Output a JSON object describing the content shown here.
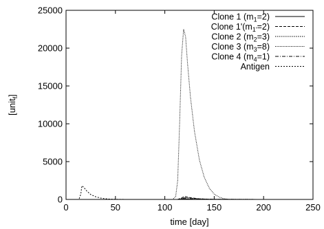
{
  "chart_data": {
    "type": "line",
    "title": "",
    "xlabel": "time [day]",
    "ylabel_main": "[unit",
    "ylabel_sub": "f",
    "ylabel_close": "]",
    "xlim": [
      0,
      250
    ],
    "ylim": [
      0,
      25000
    ],
    "xticks": [
      0,
      50,
      100,
      150,
      200,
      250
    ],
    "yticks": [
      0,
      5000,
      10000,
      15000,
      20000,
      25000
    ],
    "grid": false,
    "legend_position": "top-right",
    "series": [
      {
        "name": "Clone 1 (m",
        "name_sub": "1",
        "name_tail": "=2)",
        "dash": "solid",
        "x": [
          0,
          20,
          100,
          115,
          119,
          125,
          140,
          210
        ],
        "y": [
          0,
          0,
          0,
          0,
          80,
          40,
          5,
          0
        ]
      },
      {
        "name": "Clone 1'(m",
        "name_sub": "1'",
        "name_tail": "=2)",
        "dash": "dashed",
        "x": [
          0,
          100,
          113,
          117,
          120,
          125,
          135,
          150,
          210
        ],
        "y": [
          0,
          0,
          0,
          200,
          400,
          250,
          80,
          10,
          0
        ]
      },
      {
        "name": "Clone 2 (m",
        "name_sub": "2",
        "name_tail": "=3)",
        "dash": "dotted",
        "x": [
          0,
          100,
          114,
          118,
          122,
          130,
          145,
          210
        ],
        "y": [
          0,
          0,
          0,
          150,
          250,
          120,
          20,
          0
        ]
      },
      {
        "name": "Clone 3 (m",
        "name_sub": "3",
        "name_tail": "=8)",
        "dash": "fine-dotted",
        "x": [
          0,
          100,
          108,
          111,
          113,
          115,
          117,
          119,
          121,
          123,
          126,
          130,
          135,
          140,
          145,
          150,
          155,
          160,
          165
        ],
        "y": [
          0,
          0,
          0,
          400,
          2500,
          10000,
          19000,
          22500,
          21500,
          18000,
          13500,
          9000,
          5200,
          2900,
          1500,
          700,
          300,
          100,
          0
        ]
      },
      {
        "name": "Clone 4 (m",
        "name_sub": "4",
        "name_tail": "=1)",
        "dash": "dash-dot",
        "x": [
          0,
          100,
          113,
          117,
          120,
          126,
          140,
          210
        ],
        "y": [
          0,
          0,
          0,
          120,
          200,
          90,
          15,
          0
        ]
      },
      {
        "name": "Antigen",
        "name_sub": "",
        "name_tail": "",
        "dash": "short-dashed",
        "x": [
          0,
          13,
          15,
          16,
          18,
          21,
          25,
          30,
          35,
          40,
          45,
          55,
          65,
          200,
          210
        ],
        "y": [
          0,
          0,
          700,
          1800,
          1600,
          1100,
          650,
          350,
          180,
          90,
          40,
          10,
          0,
          0,
          0
        ]
      }
    ]
  }
}
